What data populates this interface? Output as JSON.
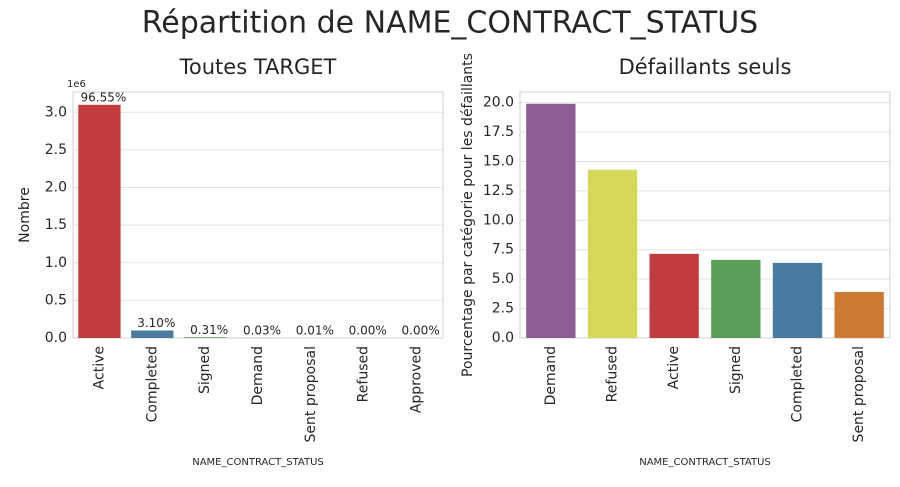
{
  "title": "Répartition de NAME_CONTRACT_STATUS",
  "chart_data": [
    {
      "type": "bar",
      "title": "Toutes TARGET",
      "xlabel": "NAME_CONTRACT_STATUS",
      "ylabel": "Nombre",
      "y_offset_label": "1e6",
      "categories": [
        "Active",
        "Completed",
        "Signed",
        "Demand",
        "Sent proposal",
        "Refused",
        "Approved"
      ],
      "values": [
        3.1,
        0.0996,
        0.00995,
        0.001,
        0.0003,
        0.0,
        0.0
      ],
      "colors": [
        "#c03d3e",
        "#4a7aa0",
        "#5a9e57",
        "#8c5e94",
        "#cc7a30",
        "#d4d95a",
        "#7f7f7f"
      ],
      "shares": {
        "values": [
          96.55,
          3.1,
          0.31,
          0.03,
          0.01,
          0.0,
          0.0
        ],
        "value_labels": [
          "96.55%",
          "3.10%",
          "0.31%",
          "0.03%",
          "0.01%",
          "0.00%",
          "0.00%"
        ]
      },
      "ylim": [
        0,
        3.27
      ],
      "yticks": [
        {
          "value": 0,
          "label": "0.0"
        },
        0.5,
        {
          "value": 1,
          "label": "1.0"
        },
        1.5,
        {
          "value": 2,
          "label": "2.0"
        },
        2.5,
        {
          "value": 3,
          "label": "3.0"
        }
      ],
      "grid": true
    },
    {
      "type": "bar",
      "title": "Défaillants seuls",
      "xlabel": "NAME_CONTRACT_STATUS",
      "ylabel": "Pourcentage par catégorie pour les défaillants",
      "categories": [
        "Demand",
        "Refused",
        "Active",
        "Signed",
        "Completed",
        "Sent proposal"
      ],
      "values": [
        19.9,
        14.3,
        7.15,
        6.64,
        6.38,
        3.91
      ],
      "colors": [
        "#8c5e94",
        "#d4d95a",
        "#c03d3e",
        "#5a9e57",
        "#4a7aa0",
        "#cc7a30"
      ],
      "ylim": [
        0,
        20.9
      ],
      "yticks": [
        {
          "value": 0,
          "label": "0.0"
        },
        2.5,
        {
          "value": 5,
          "label": "5.0"
        },
        7.5,
        {
          "value": 10,
          "label": "10.0"
        },
        12.5,
        {
          "value": 15,
          "label": "15.0"
        },
        17.5,
        {
          "value": 20,
          "label": "20.0"
        }
      ],
      "grid": true
    }
  ]
}
